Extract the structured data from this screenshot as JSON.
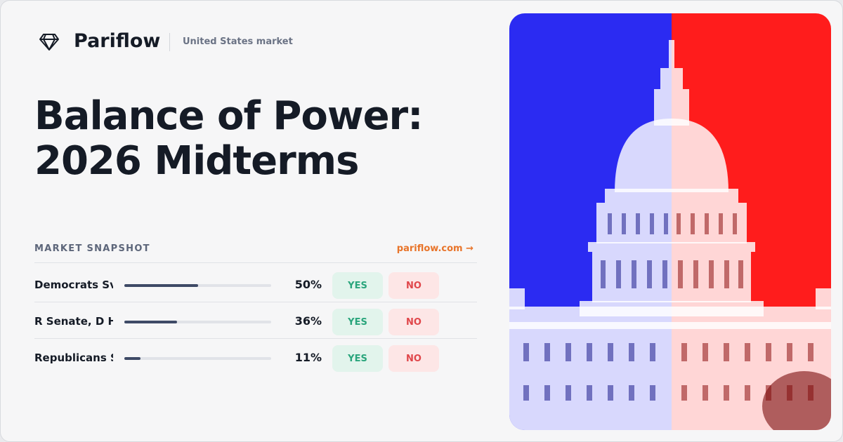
{
  "brand": "Pariflow",
  "market": "United States market",
  "title": [
    "Balance of Power:",
    "2026 Midterms"
  ],
  "snapshot": {
    "heading": "MARKET SNAPSHOT",
    "link": "pariflow.com →",
    "rows": [
      {
        "name": "Democrats Sv",
        "value": 50,
        "value_label": "50%",
        "yes": "YES",
        "no": "NO"
      },
      {
        "name": "R Senate, D H",
        "value": 36,
        "value_label": "36%",
        "yes": "YES",
        "no": "NO"
      },
      {
        "name": "Republicans S",
        "value": 11,
        "value_label": "11%",
        "yes": "YES",
        "no": "NO"
      }
    ]
  }
}
